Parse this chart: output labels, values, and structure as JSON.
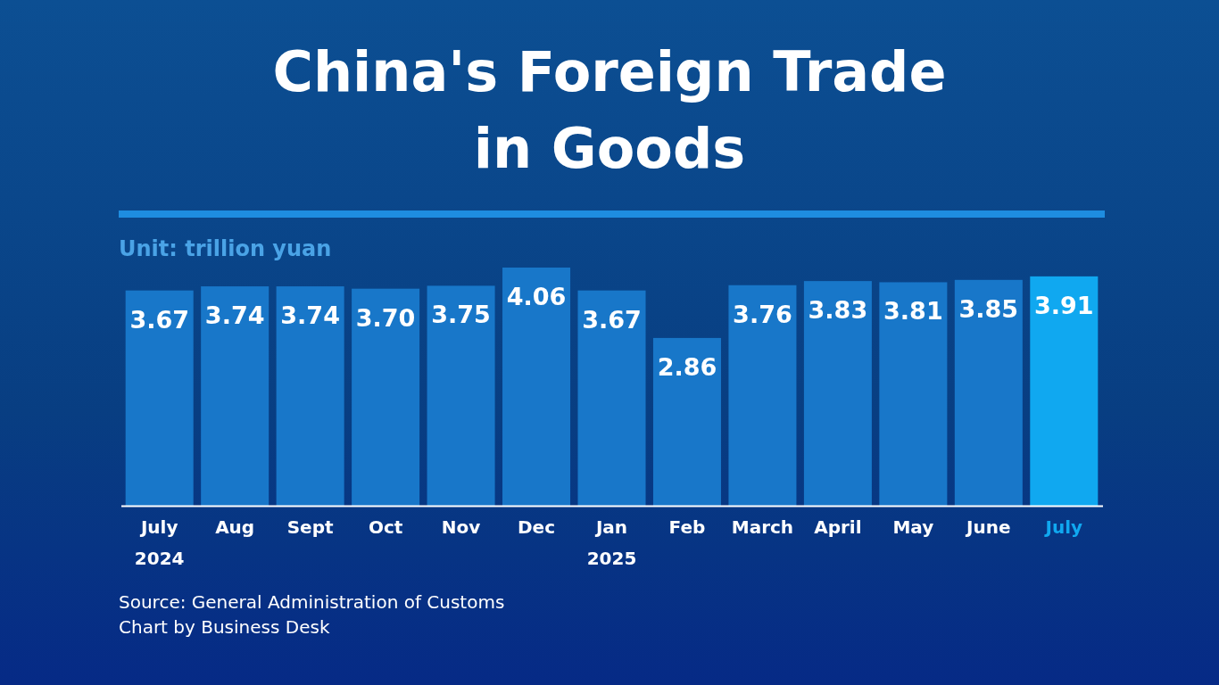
{
  "chart_data": {
    "type": "bar",
    "title": "China's Foreign Trade in Goods",
    "ylabel": "Unit: trillion yuan",
    "categories": [
      "July 2024",
      "Aug",
      "Sept",
      "Oct",
      "Nov",
      "Dec",
      "Jan 2025",
      "Feb",
      "March",
      "April",
      "May",
      "June",
      "July"
    ],
    "values": [
      3.67,
      3.74,
      3.74,
      3.7,
      3.75,
      4.06,
      3.67,
      2.86,
      3.76,
      3.83,
      3.81,
      3.85,
      3.91
    ],
    "value_labels": [
      "3.67",
      "3.74",
      "3.74",
      "3.70",
      "3.75",
      "4.06",
      "3.67",
      "2.86",
      "3.76",
      "3.83",
      "3.81",
      "3.85",
      "3.91"
    ],
    "colors": [
      "#1877c9",
      "#1877c9",
      "#1877c9",
      "#1877c9",
      "#1877c9",
      "#1877c9",
      "#1877c9",
      "#1877c9",
      "#1877c9",
      "#1877c9",
      "#1877c9",
      "#1877c9",
      "#10a8f0"
    ],
    "annotations": [
      "Source: General Administration of Customs",
      "Chart by Business Desk"
    ]
  }
}
